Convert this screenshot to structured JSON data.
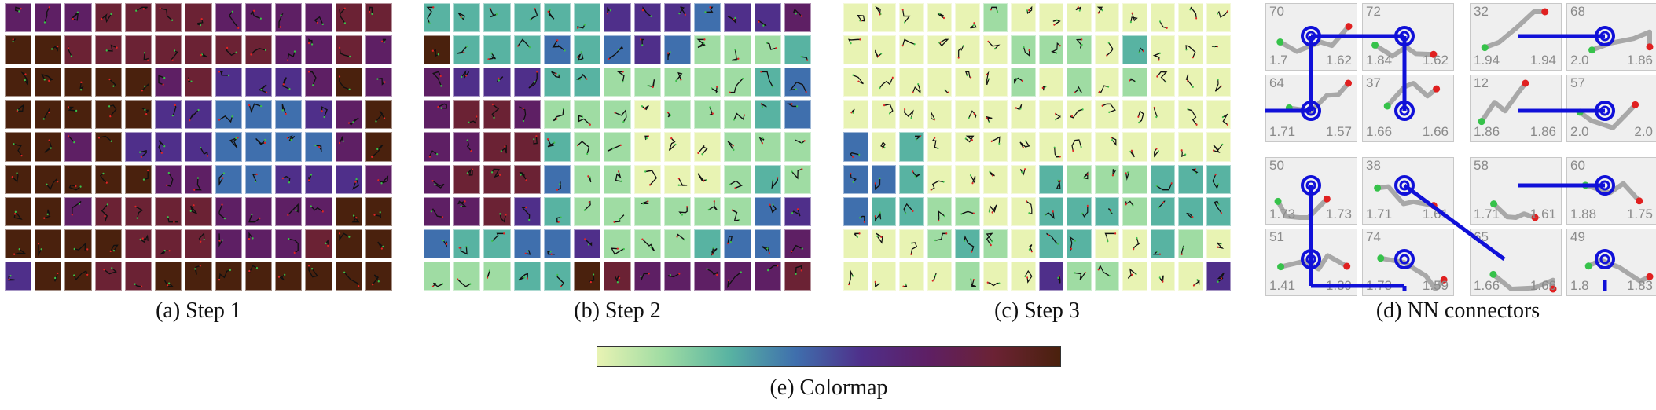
{
  "captions": {
    "a": "(a)  Step 1",
    "b": "(b)  Step 2",
    "c": "(c)  Step 3",
    "d": "(d)  NN connectors",
    "e": "(e)  Colormap"
  },
  "colormap": {
    "stops": [
      "#e8f3b3",
      "#9fdca3",
      "#58b3a2",
      "#3f6fad",
      "#4f2f8a",
      "#5e1f64",
      "#6b2234",
      "#4a210d"
    ]
  },
  "grids": {
    "step1": [
      "5556666555566",
      "7766666665565",
      "7777756444575",
      "7777744333457",
      "7757444333357",
      "7777755334445",
      "7756666555577",
      "7777666555677",
      "4776677777777"
    ],
    "step2": [
      "2222224443445",
      "7222323431112",
      "5444221111123",
      "5665111011123",
      "5566211000111",
      "5666311000121",
      "5564211111134",
      "3223341112335",
      "1112276555556"
    ],
    "step3": [
      "00000100000000",
      "00000011102000",
      "00000010101000",
      "00000000000000",
      "30200000000000",
      "33200002111222",
      "32211002221222",
      "00012102200210",
      "00001004110004"
    ]
  },
  "nn": {
    "cells": [
      {
        "tl": "70",
        "bl": "1.7",
        "br": "1.62"
      },
      {
        "tl": "72",
        "bl": "1.84",
        "br": "1.62"
      },
      {
        "tl": "32",
        "bl": "1.94",
        "br": "1.94"
      },
      {
        "tl": "68",
        "bl": "2.0",
        "br": "1.86"
      },
      {
        "tl": "64",
        "bl": "1.71",
        "br": "1.57"
      },
      {
        "tl": "37",
        "bl": "1.66",
        "br": "1.66"
      },
      {
        "tl": "12",
        "bl": "1.86",
        "br": "1.86"
      },
      {
        "tl": "57",
        "bl": "2.0",
        "br": "2.0"
      },
      {
        "tl": "50",
        "bl": "1.73",
        "br": "1.73"
      },
      {
        "tl": "38",
        "bl": "1.71",
        "br": "1.61"
      },
      {
        "tl": "58",
        "bl": "1.71",
        "br": "1.61"
      },
      {
        "tl": "60",
        "bl": "1.88",
        "br": "1.75"
      },
      {
        "tl": "51",
        "bl": "1.41",
        "br": "1.39"
      },
      {
        "tl": "74",
        "bl": "1.73",
        "br": "1.59"
      },
      {
        "tl": "65",
        "bl": "1.66",
        "br": "1.66"
      },
      {
        "tl": "49",
        "bl": "1.8",
        "br": "1.83"
      }
    ]
  }
}
